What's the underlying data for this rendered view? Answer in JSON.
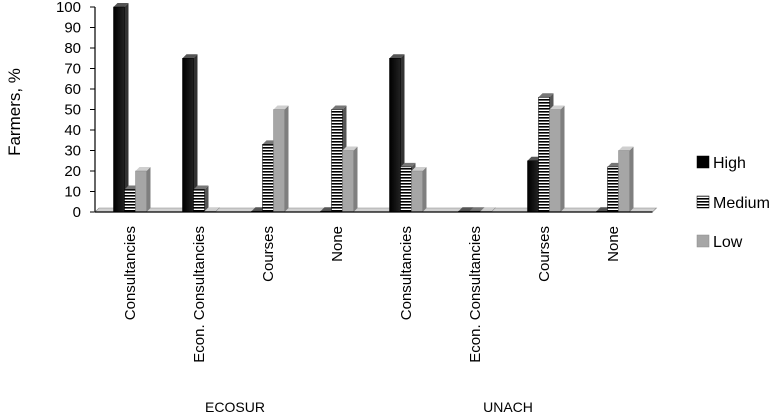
{
  "chart_data": {
    "type": "bar",
    "ylabel": "Farmers, %",
    "ylim": [
      0,
      100
    ],
    "yticks": [
      "0",
      "10",
      "20",
      "30",
      "40",
      "50",
      "60",
      "70",
      "80",
      "90",
      "100"
    ],
    "groups": [
      {
        "name": "ECOSUR",
        "categories": [
          "Consultancies",
          "Econ. Consultancies",
          "Courses",
          "None"
        ]
      },
      {
        "name": "UNACH",
        "categories": [
          "Consultancies",
          "Econ. Consultancies",
          "Courses",
          "None"
        ]
      }
    ],
    "series": [
      {
        "name": "High",
        "values": [
          100,
          75,
          0,
          0,
          75,
          0,
          25,
          0
        ],
        "color": "#000000",
        "pattern": "solid"
      },
      {
        "name": "Medium",
        "values": [
          11,
          11,
          33,
          50,
          22,
          0,
          56,
          22
        ],
        "color": "#000000",
        "pattern": "horizontal-stripes"
      },
      {
        "name": "Low",
        "values": [
          20,
          0,
          50,
          30,
          20,
          0,
          50,
          30
        ],
        "color": "#a6a6a6",
        "pattern": "solid"
      }
    ],
    "legend_position": "right",
    "grid": false
  }
}
